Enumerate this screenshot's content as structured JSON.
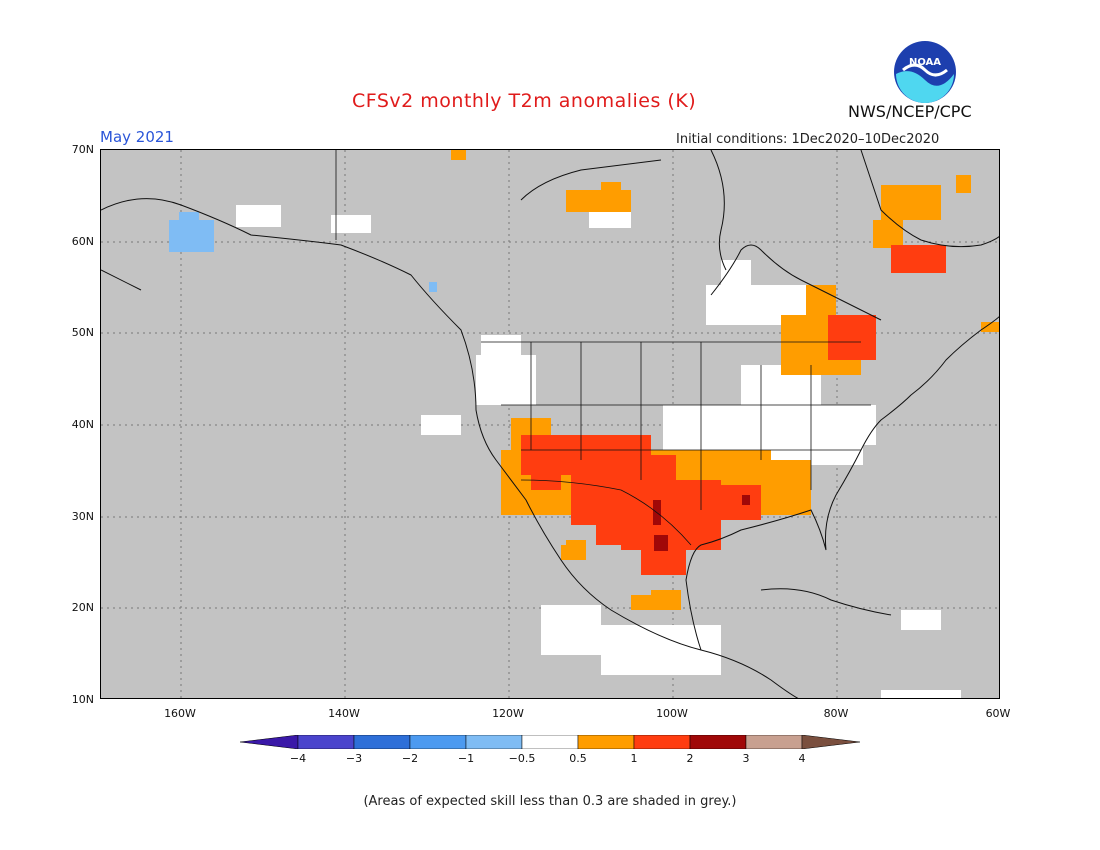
{
  "header": {
    "title": "CFSv2 monthly T2m anomalies (K)",
    "month": "May 2021",
    "initial_conditions": "Initial conditions: 1Dec2020–10Dec2020",
    "agency": "NWS/NCEP/CPC",
    "logo_text": "NOAA"
  },
  "map": {
    "lat_labels": [
      "70N",
      "60N",
      "50N",
      "40N",
      "30N",
      "20N",
      "10N"
    ],
    "lon_labels": [
      "160W",
      "140W",
      "120W",
      "100W",
      "80W",
      "60W"
    ],
    "background_color": "#c3c3c3"
  },
  "colorbar": {
    "labels": [
      "−4",
      "−3",
      "−2",
      "−1",
      "−0.5",
      "0.5",
      "1",
      "2",
      "3",
      "4"
    ],
    "colors": [
      "#3a18a8",
      "#4a44cc",
      "#2e6fd8",
      "#4c9af0",
      "#7fbcf4",
      "#ffffff",
      "#ff9d00",
      "#ff3d10",
      "#a00808",
      "#c8a090",
      "#7a4f3e"
    ]
  },
  "footnote": "(Areas of expected skill less than 0.3 are shaded in grey.)"
}
